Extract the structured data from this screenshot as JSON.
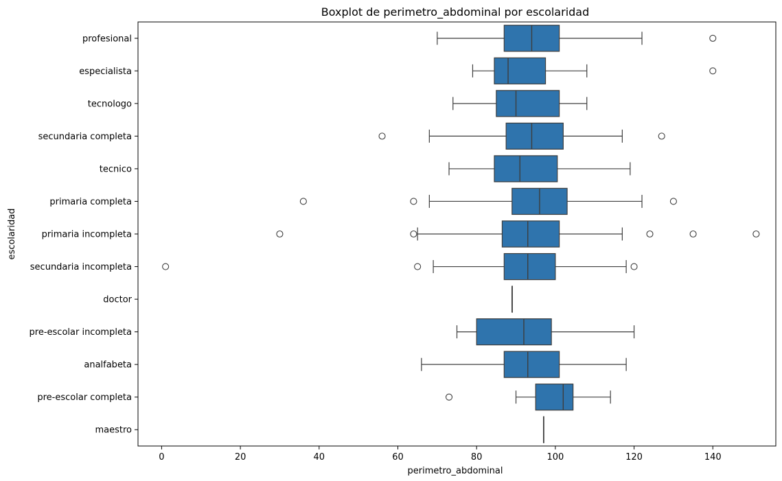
{
  "chart_data": {
    "type": "boxplot",
    "title": "Boxplot de perimetro_abdominal por escolaridad",
    "xlabel": "perimetro_abdominal",
    "ylabel": "escolaridad",
    "xlim": [
      -6,
      156
    ],
    "xticks": [
      0,
      20,
      40,
      60,
      80,
      100,
      120,
      140
    ],
    "box_color": "#2f74ad",
    "line_color": "#3d3d3d",
    "grid": false,
    "categories": [
      {
        "name": "profesional",
        "whisker_low": 70,
        "q1": 87,
        "median": 94,
        "q3": 101,
        "whisker_high": 122,
        "outliers": [
          140
        ]
      },
      {
        "name": "especialista",
        "whisker_low": 79,
        "q1": 84.5,
        "median": 88,
        "q3": 97.5,
        "whisker_high": 108,
        "outliers": [
          140
        ]
      },
      {
        "name": "tecnologo",
        "whisker_low": 74,
        "q1": 85,
        "median": 90,
        "q3": 101,
        "whisker_high": 108,
        "outliers": []
      },
      {
        "name": "secundaria completa",
        "whisker_low": 68,
        "q1": 87.5,
        "median": 94,
        "q3": 102,
        "whisker_high": 117,
        "outliers": [
          56,
          127
        ]
      },
      {
        "name": "tecnico",
        "whisker_low": 73,
        "q1": 84.5,
        "median": 91,
        "q3": 100.5,
        "whisker_high": 119,
        "outliers": []
      },
      {
        "name": "primaria completa",
        "whisker_low": 68,
        "q1": 89,
        "median": 96,
        "q3": 103,
        "whisker_high": 122,
        "outliers": [
          36,
          64,
          130
        ]
      },
      {
        "name": "primaria incompleta",
        "whisker_low": 65,
        "q1": 86.5,
        "median": 93,
        "q3": 101,
        "whisker_high": 117,
        "outliers": [
          30,
          64,
          124,
          135,
          151
        ]
      },
      {
        "name": "secundaria incompleta",
        "whisker_low": 69,
        "q1": 87,
        "median": 93,
        "q3": 100,
        "whisker_high": 118,
        "outliers": [
          1,
          65,
          120
        ]
      },
      {
        "name": "doctor",
        "whisker_low": 89,
        "q1": 89,
        "median": 89,
        "q3": 89,
        "whisker_high": 89,
        "outliers": []
      },
      {
        "name": "pre-escolar incompleta",
        "whisker_low": 75,
        "q1": 80,
        "median": 92,
        "q3": 99,
        "whisker_high": 120,
        "outliers": []
      },
      {
        "name": "analfabeta",
        "whisker_low": 66,
        "q1": 87,
        "median": 93,
        "q3": 101,
        "whisker_high": 118,
        "outliers": []
      },
      {
        "name": "pre-escolar completa",
        "whisker_low": 90,
        "q1": 95,
        "median": 102,
        "q3": 104.5,
        "whisker_high": 114,
        "outliers": [
          73
        ]
      },
      {
        "name": "maestro",
        "whisker_low": 97,
        "q1": 97,
        "median": 97,
        "q3": 97,
        "whisker_high": 97,
        "outliers": []
      }
    ]
  }
}
